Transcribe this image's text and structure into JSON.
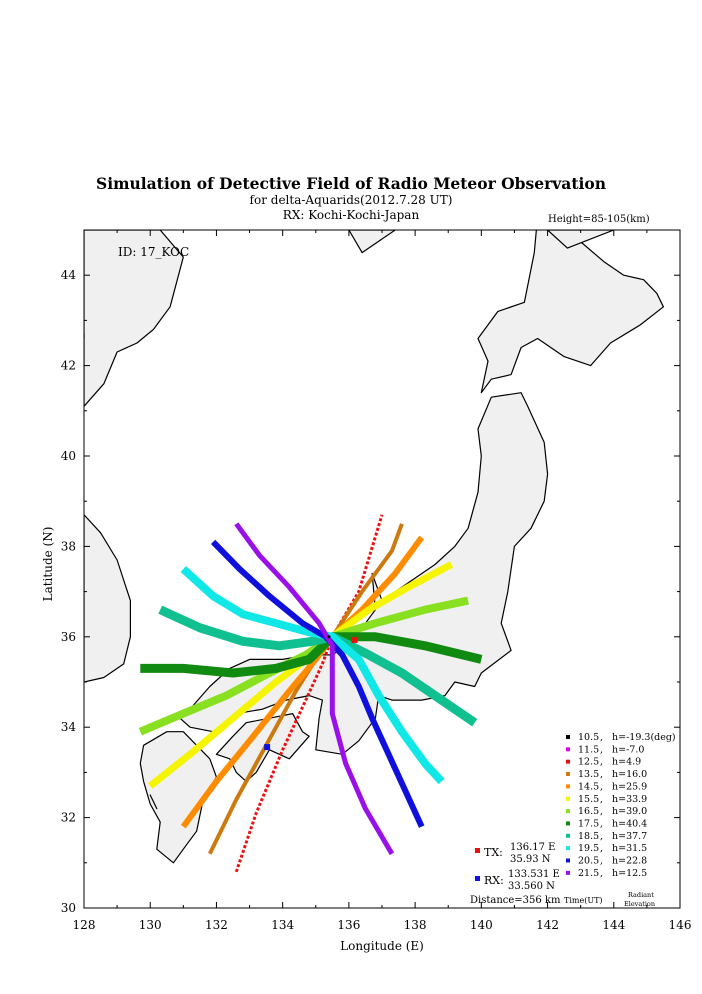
{
  "title": "Simulation of Detective Field of Radio Meteor Observation",
  "subtitle_shower": "for delta-Aquarids(2012.7.28 UT)",
  "subtitle_rx": "RX: Kochi-Kochi-Japan",
  "height_label": "Height=85-105(km)",
  "id_label": "ID: 17_KOC",
  "axes": {
    "xlabel": "Longitude (E)",
    "ylabel": "Latitude (N)",
    "xlim": [
      128,
      146
    ],
    "ylim": [
      30,
      45
    ],
    "xticks": [
      128,
      130,
      132,
      134,
      136,
      138,
      140,
      142,
      144,
      146
    ],
    "yticks": [
      30,
      32,
      34,
      36,
      38,
      40,
      42,
      44
    ]
  },
  "stations": {
    "tx": {
      "label": "TX:",
      "lon_text": "136.17 E",
      "lat_text": "35.93 N",
      "lon": 136.17,
      "lat": 35.93,
      "color": "#e81010"
    },
    "rx": {
      "label": "RX:",
      "lon_text": "133.531 E",
      "lat_text": "33.560 N",
      "lon": 133.531,
      "lat": 33.56,
      "color": "#1010e0"
    },
    "distance": "Distance=356 km"
  },
  "legend": {
    "time_caption": "Time(UT)",
    "elev_caption_1": "Radiant",
    "elev_caption_2": "Elevation",
    "entries": [
      {
        "time": "10.5",
        "h": "h=-19.3(deg)",
        "color": "#000000"
      },
      {
        "time": "11.5",
        "h": "h=-7.0",
        "color": "#dd00dd"
      },
      {
        "time": "12.5",
        "h": "h=4.9",
        "color": "#ee1010"
      },
      {
        "time": "13.5",
        "h": "h=16.0",
        "color": "#cc7a10"
      },
      {
        "time": "14.5",
        "h": "h=25.9",
        "color": "#ff8c00"
      },
      {
        "time": "15.5",
        "h": "h=33.9",
        "color": "#f5f500"
      },
      {
        "time": "16.5",
        "h": "h=39.0",
        "color": "#88e020"
      },
      {
        "time": "17.5",
        "h": "h=40.4",
        "color": "#108a10"
      },
      {
        "time": "18.5",
        "h": "h=37.7",
        "color": "#10c090"
      },
      {
        "time": "19.5",
        "h": "h=31.5",
        "color": "#10e8e8"
      },
      {
        "time": "20.5",
        "h": "h=22.8",
        "color": "#1010dd"
      },
      {
        "time": "21.5",
        "h": "h=12.5",
        "color": "#9a10e8"
      }
    ]
  },
  "map_data": {
    "land_color": "#f0f0f0",
    "hub": [
      135.4,
      36.0
    ],
    "bands": [
      {
        "time": "12.5",
        "color": "#ee1010",
        "path": [
          [
            132.6,
            30.8
          ],
          [
            133.2,
            32.1
          ],
          [
            134.0,
            33.5
          ],
          [
            134.7,
            34.6
          ],
          [
            135.2,
            35.4
          ],
          [
            135.5,
            36.0
          ],
          [
            136.3,
            37.0
          ],
          [
            137.0,
            38.7
          ]
        ],
        "w": 3,
        "dash": true
      },
      {
        "time": "13.5",
        "color": "#cc7a10",
        "path": [
          [
            131.8,
            31.2
          ],
          [
            132.6,
            32.4
          ],
          [
            133.5,
            33.6
          ],
          [
            134.4,
            34.8
          ],
          [
            135.0,
            35.5
          ],
          [
            135.5,
            36.0
          ],
          [
            136.4,
            37.0
          ],
          [
            137.3,
            37.9
          ],
          [
            137.6,
            38.5
          ]
        ],
        "w": 4
      },
      {
        "time": "14.5",
        "color": "#ff8c00",
        "path": [
          [
            131.0,
            31.8
          ],
          [
            132.0,
            32.8
          ],
          [
            133.0,
            33.7
          ],
          [
            134.2,
            34.8
          ],
          [
            135.0,
            35.5
          ],
          [
            135.5,
            36.0
          ],
          [
            136.4,
            36.6
          ],
          [
            137.4,
            37.4
          ],
          [
            138.2,
            38.2
          ]
        ],
        "w": 6
      },
      {
        "time": "15.5",
        "color": "#f5f500",
        "path": [
          [
            130.0,
            32.7
          ],
          [
            131.2,
            33.4
          ],
          [
            132.5,
            34.2
          ],
          [
            133.8,
            35.0
          ],
          [
            134.9,
            35.6
          ],
          [
            135.5,
            36.0
          ],
          [
            136.6,
            36.6
          ],
          [
            137.8,
            37.1
          ],
          [
            139.1,
            37.6
          ]
        ],
        "w": 7
      },
      {
        "time": "16.5",
        "color": "#88e020",
        "path": [
          [
            129.7,
            33.9
          ],
          [
            131.0,
            34.3
          ],
          [
            132.3,
            34.7
          ],
          [
            133.6,
            35.2
          ],
          [
            134.7,
            35.6
          ],
          [
            135.5,
            36.0
          ],
          [
            136.8,
            36.3
          ],
          [
            138.3,
            36.6
          ],
          [
            139.6,
            36.8
          ]
        ],
        "w": 8
      },
      {
        "time": "17.5",
        "color": "#108a10",
        "path": [
          [
            129.7,
            35.3
          ],
          [
            131.0,
            35.3
          ],
          [
            132.5,
            35.2
          ],
          [
            133.8,
            35.3
          ],
          [
            134.8,
            35.5
          ],
          [
            135.5,
            36.0
          ],
          [
            136.8,
            36.0
          ],
          [
            138.3,
            35.8
          ],
          [
            140.0,
            35.5
          ]
        ],
        "w": 9
      },
      {
        "time": "18.5",
        "color": "#10c090",
        "path": [
          [
            130.3,
            36.6
          ],
          [
            131.5,
            36.2
          ],
          [
            132.8,
            35.9
          ],
          [
            133.9,
            35.8
          ],
          [
            134.9,
            35.9
          ],
          [
            135.5,
            36.0
          ],
          [
            136.6,
            35.6
          ],
          [
            137.6,
            35.2
          ],
          [
            138.8,
            34.6
          ],
          [
            139.8,
            34.1
          ]
        ],
        "w": 9
      },
      {
        "time": "19.5",
        "color": "#10e8e8",
        "path": [
          [
            131.0,
            37.5
          ],
          [
            131.9,
            36.9
          ],
          [
            132.8,
            36.5
          ],
          [
            133.8,
            36.3
          ],
          [
            134.8,
            36.1
          ],
          [
            135.5,
            36.0
          ],
          [
            136.3,
            35.5
          ],
          [
            136.9,
            34.7
          ],
          [
            137.6,
            33.9
          ],
          [
            138.3,
            33.2
          ],
          [
            138.8,
            32.8
          ]
        ],
        "w": 8
      },
      {
        "time": "20.5",
        "color": "#1010dd",
        "path": [
          [
            131.9,
            38.1
          ],
          [
            132.7,
            37.5
          ],
          [
            133.6,
            36.9
          ],
          [
            134.6,
            36.3
          ],
          [
            135.3,
            36.0
          ],
          [
            135.8,
            35.6
          ],
          [
            136.3,
            34.9
          ],
          [
            136.7,
            34.2
          ],
          [
            137.2,
            33.4
          ],
          [
            137.7,
            32.6
          ],
          [
            138.2,
            31.8
          ]
        ],
        "w": 6
      },
      {
        "time": "21.5",
        "color": "#9a10e8",
        "path": [
          [
            132.6,
            38.5
          ],
          [
            133.3,
            37.8
          ],
          [
            134.2,
            37.1
          ],
          [
            135.1,
            36.3
          ],
          [
            135.5,
            35.8
          ],
          [
            135.5,
            35.2
          ],
          [
            135.5,
            34.3
          ],
          [
            135.9,
            33.2
          ],
          [
            136.5,
            32.2
          ],
          [
            137.3,
            31.2
          ]
        ],
        "w": 5
      }
    ],
    "land": [
      [
        [
          135.0,
          33.5
        ],
        [
          135.8,
          33.4
        ],
        [
          136.3,
          33.7
        ],
        [
          136.8,
          34.2
        ],
        [
          136.9,
          34.7
        ],
        [
          137.3,
          34.6
        ],
        [
          138.2,
          34.6
        ],
        [
          138.9,
          34.7
        ],
        [
          139.2,
          35.0
        ],
        [
          139.8,
          34.9
        ],
        [
          140.0,
          35.2
        ],
        [
          140.9,
          35.7
        ],
        [
          140.6,
          36.3
        ],
        [
          140.8,
          37.0
        ],
        [
          141.0,
          38.0
        ],
        [
          141.5,
          38.4
        ],
        [
          141.9,
          39.0
        ],
        [
          142.0,
          39.6
        ],
        [
          141.9,
          40.3
        ],
        [
          141.4,
          41.1
        ],
        [
          141.2,
          41.4
        ],
        [
          140.3,
          41.3
        ],
        [
          139.9,
          40.6
        ],
        [
          140.0,
          40.0
        ],
        [
          139.9,
          39.2
        ],
        [
          139.6,
          38.4
        ],
        [
          139.2,
          38.0
        ],
        [
          138.6,
          37.6
        ],
        [
          137.6,
          37.1
        ],
        [
          137.0,
          36.8
        ],
        [
          136.7,
          37.4
        ],
        [
          136.8,
          36.6
        ],
        [
          136.1,
          35.9
        ],
        [
          135.5,
          35.6
        ],
        [
          134.8,
          35.6
        ],
        [
          134.0,
          35.5
        ],
        [
          133.0,
          35.5
        ],
        [
          132.4,
          35.3
        ],
        [
          131.8,
          34.9
        ],
        [
          131.2,
          34.4
        ],
        [
          130.9,
          34.2
        ],
        [
          131.2,
          34.0
        ],
        [
          131.9,
          33.9
        ],
        [
          132.6,
          34.3
        ],
        [
          133.4,
          34.4
        ],
        [
          134.1,
          34.6
        ],
        [
          134.8,
          34.7
        ],
        [
          135.2,
          34.6
        ],
        [
          135.1,
          34.2
        ]
      ],
      [
        [
          132.0,
          33.4
        ],
        [
          132.5,
          33.8
        ],
        [
          132.9,
          34.1
        ],
        [
          133.6,
          34.2
        ],
        [
          134.3,
          34.3
        ],
        [
          134.6,
          33.9
        ],
        [
          134.8,
          33.8
        ],
        [
          134.2,
          33.3
        ],
        [
          133.6,
          33.5
        ],
        [
          133.2,
          33.0
        ],
        [
          132.9,
          32.8
        ],
        [
          132.6,
          33.0
        ],
        [
          132.4,
          33.3
        ]
      ],
      [
        [
          129.8,
          33.6
        ],
        [
          130.5,
          33.9
        ],
        [
          131.0,
          33.9
        ],
        [
          131.4,
          33.6
        ],
        [
          131.8,
          33.3
        ],
        [
          132.0,
          32.9
        ],
        [
          131.6,
          32.4
        ],
        [
          131.4,
          31.7
        ],
        [
          131.1,
          31.4
        ],
        [
          130.7,
          31.0
        ],
        [
          130.2,
          31.3
        ],
        [
          130.3,
          31.9
        ],
        [
          130.0,
          32.3
        ],
        [
          129.8,
          32.8
        ],
        [
          129.7,
          33.2
        ]
      ],
      [
        [
          140.0,
          41.4
        ],
        [
          140.3,
          41.7
        ],
        [
          140.9,
          41.8
        ],
        [
          141.2,
          42.4
        ],
        [
          141.7,
          42.6
        ],
        [
          142.5,
          42.2
        ],
        [
          143.3,
          42.0
        ],
        [
          143.9,
          42.5
        ],
        [
          144.8,
          42.9
        ],
        [
          145.5,
          43.3
        ],
        [
          145.3,
          43.6
        ],
        [
          144.9,
          43.9
        ],
        [
          144.3,
          44.0
        ],
        [
          143.7,
          44.3
        ],
        [
          142.9,
          44.8
        ],
        [
          142.4,
          45.1
        ],
        [
          141.7,
          45.3
        ],
        [
          141.6,
          44.5
        ],
        [
          141.3,
          43.4
        ],
        [
          140.5,
          43.2
        ],
        [
          139.9,
          42.6
        ],
        [
          140.2,
          42.1
        ]
      ],
      [
        [
          128.0,
          38.7
        ],
        [
          128.5,
          38.3
        ],
        [
          129.0,
          37.7
        ],
        [
          129.4,
          36.8
        ],
        [
          129.4,
          36.0
        ],
        [
          129.2,
          35.4
        ],
        [
          128.6,
          35.1
        ],
        [
          128.0,
          35.0
        ]
      ],
      [
        [
          129.0,
          42.3
        ],
        [
          128.6,
          41.6
        ],
        [
          128.0,
          41.1
        ],
        [
          128.0,
          45.0
        ],
        [
          130.3,
          45.0
        ],
        [
          131.0,
          44.4
        ],
        [
          130.6,
          43.3
        ],
        [
          130.1,
          42.8
        ],
        [
          129.6,
          42.5
        ]
      ],
      [
        [
          136.0,
          45.0
        ],
        [
          136.4,
          44.5
        ],
        [
          137.4,
          45.0
        ]
      ],
      [
        [
          142.0,
          45.0
        ],
        [
          142.6,
          44.6
        ],
        [
          144.0,
          45.0
        ]
      ],
      [
        [
          128.0,
          42.6
        ],
        [
          128.0,
          42.7
        ]
      ],
      [
        [
          130.0,
          32.5
        ],
        [
          130.2,
          32.2
        ]
      ]
    ]
  }
}
